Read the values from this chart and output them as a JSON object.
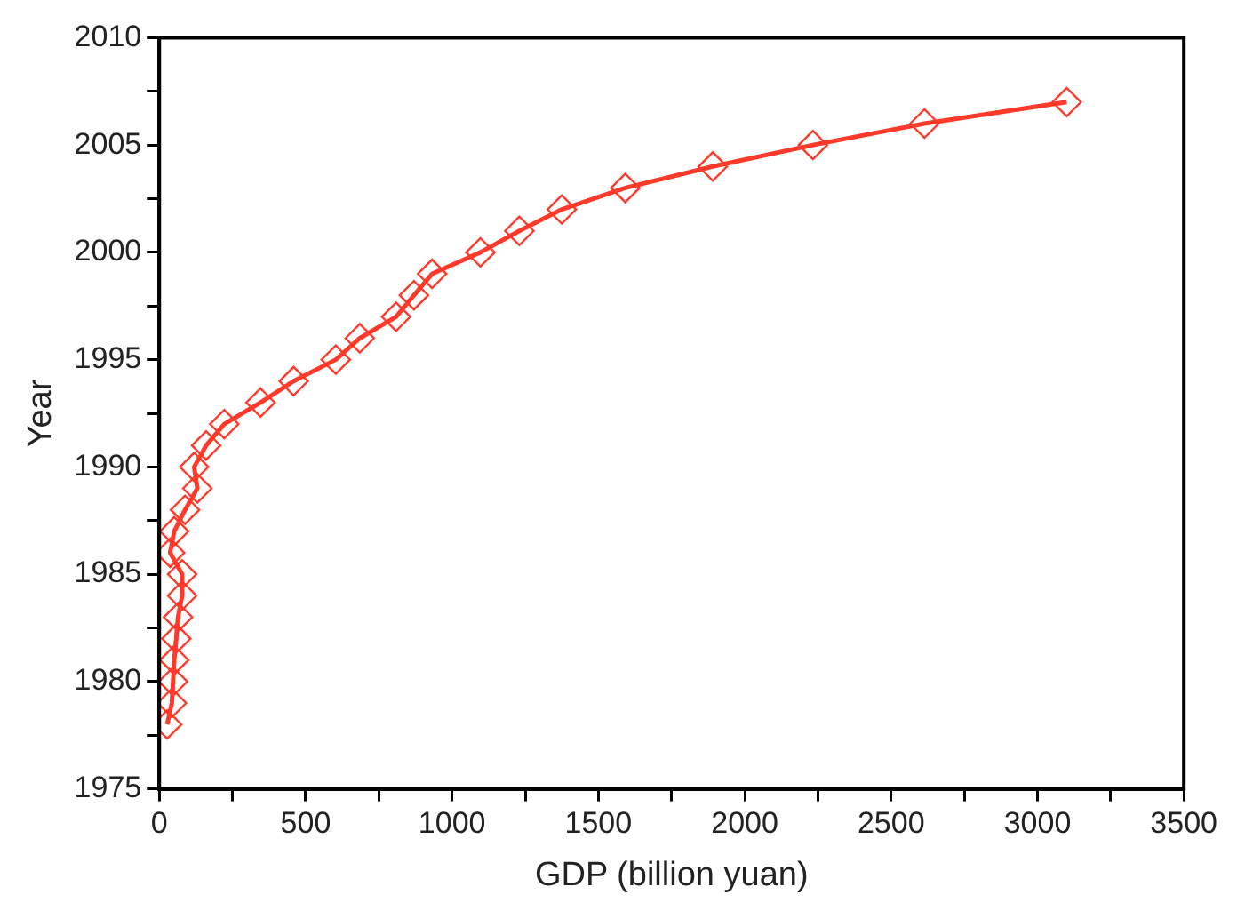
{
  "chart_data": {
    "type": "line",
    "xlabel": "GDP (billion yuan)",
    "ylabel": "Year",
    "marker": "diamond",
    "line_style": "solid",
    "grid": false,
    "legend": false,
    "xlim": [
      0,
      3500
    ],
    "ylim": [
      1975,
      2010
    ],
    "xticks": [
      0,
      {
        "value": 250,
        "label": null
      },
      500,
      {
        "value": 750,
        "label": null
      },
      1000,
      {
        "value": 1250,
        "label": null
      },
      1500,
      {
        "value": 1750,
        "label": null
      },
      2000,
      {
        "value": 2250,
        "label": null
      },
      2500,
      {
        "value": 2750,
        "label": null
      },
      3000,
      {
        "value": 3250,
        "label": null
      },
      3500
    ],
    "yticks": [
      1975,
      {
        "value": 1977.5,
        "label": null
      },
      1980,
      {
        "value": 1982.5,
        "label": null
      },
      1985,
      {
        "value": 1987.5,
        "label": null
      },
      1990,
      {
        "value": 1992.5,
        "label": null
      },
      1995,
      {
        "value": 1997.5,
        "label": null
      },
      2000,
      {
        "value": 2002.5,
        "label": null
      },
      2005,
      {
        "value": 2007.5,
        "label": null
      },
      2010
    ],
    "series": [
      {
        "color": "#ff3a2a",
        "x": [
          27,
          43,
          47,
          51,
          58,
          64,
          78,
          78,
          37,
          51,
          88,
          130,
          119,
          160,
          222,
          346,
          459,
          603,
          685,
          809,
          870,
          932,
          1097,
          1230,
          1375,
          1592,
          1891,
          2233,
          2614,
          3100
        ],
        "values": [
          1978,
          1979,
          1980,
          1981,
          1982,
          1983,
          1984,
          1985,
          1986,
          1987,
          1988,
          1989,
          1990,
          1991,
          1992,
          1993,
          1994,
          1995,
          1996,
          1997,
          1998,
          1999,
          2000,
          2001,
          2002,
          2003,
          2004,
          2005,
          2006,
          2007
        ]
      }
    ]
  }
}
